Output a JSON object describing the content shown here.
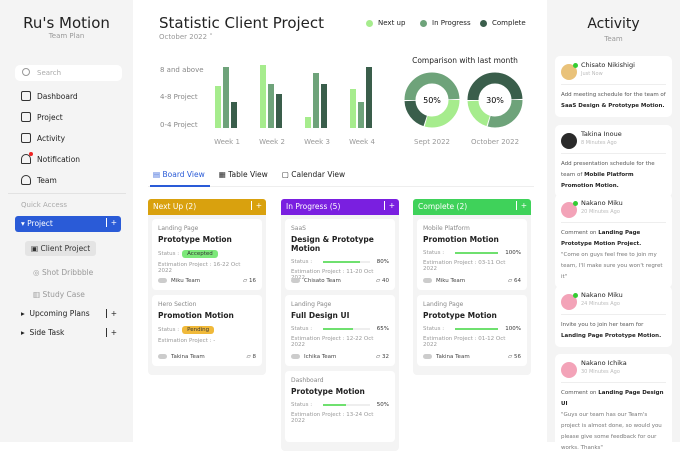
{
  "sidebar": {
    "brand": "Ru's Motion",
    "subtitle": "Team Plan",
    "search_placeholder": "Search",
    "nav": [
      "Dashboard",
      "Project",
      "Activity",
      "Notification",
      "Team"
    ],
    "quick_access": "Quick Access",
    "project": "Project",
    "project_items": [
      "Client Project",
      "Shot Dribbble",
      "Study Case"
    ],
    "groups": [
      "Upcoming Plans",
      "Side Task"
    ]
  },
  "header": {
    "title": "Statistic Client Project",
    "month": "October 2022",
    "legend": [
      "Next up",
      "In Progress",
      "Complete"
    ]
  },
  "colors": {
    "next_up": "#a6ec8d",
    "in_progress": "#6ea37a",
    "complete": "#3a5e4b",
    "accent": "#2a5bd7"
  },
  "chart_data": [
    {
      "type": "bar",
      "categories": [
        "Week 1",
        "Week 2",
        "Week 3",
        "Week 4"
      ],
      "y_tick_labels": [
        "0-4 Project",
        "4-8 Project",
        "8 and above"
      ],
      "series": [
        {
          "name": "Next up",
          "values": [
            7.9,
            11.8,
            2.1,
            7.3
          ]
        },
        {
          "name": "In Progress",
          "values": [
            11.4,
            8.3,
            10.3,
            4.9
          ]
        },
        {
          "name": "Complete",
          "values": [
            4.9,
            6.4,
            8.3,
            11.4
          ]
        }
      ],
      "ylim": [
        0,
        12
      ]
    },
    {
      "type": "pie",
      "title": "Comparison with last month",
      "donuts": [
        {
          "label": "Sept 2022",
          "center": "50%",
          "slices": {
            "Next up": 30,
            "In Progress": 50,
            "Complete": 20
          }
        },
        {
          "label": "October 2022",
          "center": "30%",
          "slices": {
            "Next up": 20,
            "In Progress": 30,
            "Complete": 50
          }
        }
      ]
    }
  ],
  "tabs": [
    "Board View",
    "Table View",
    "Calendar View"
  ],
  "columns": [
    {
      "title": "Next Up (2)",
      "color": "#d9a10e",
      "cards": [
        {
          "category": "Landing Page",
          "title": "Prototype Motion",
          "status": "Accepted",
          "status_color": "#7de87a",
          "estimation": "Estimation Project : 16-22 Oct 2022",
          "team": "Miku Team",
          "comments": "16"
        },
        {
          "category": "Hero Section",
          "title": "Promotion Motion",
          "status": "Pending",
          "status_color": "#f0b93a",
          "estimation": "Estimation Project : -",
          "team": "Takina Team",
          "comments": "8"
        }
      ]
    },
    {
      "title": "In Progress (5)",
      "color": "#7a1fe0",
      "cards": [
        {
          "category": "SaaS",
          "title": "Design & Prototype Motion",
          "progress": 80,
          "progress_label": "80%",
          "estimation": "Estimation Project : 11-20 Oct 2022",
          "team": "Chisato Team",
          "comments": "40"
        },
        {
          "category": "Landing Page",
          "title": "Full Design UI",
          "progress": 65,
          "progress_label": "65%",
          "estimation": "Estimation Project : 12-22 Oct 2022",
          "team": "Ichika Team",
          "comments": "32"
        },
        {
          "category": "Dashboard",
          "title": "Prototype Motion",
          "progress": 50,
          "progress_label": "50%",
          "estimation": "Estimation Project : 13-24 Oct 2022"
        }
      ]
    },
    {
      "title": "Complete (2)",
      "color": "#3fd25a",
      "cards": [
        {
          "category": "Mobile Platform",
          "title": "Promotion Motion",
          "progress": 100,
          "progress_label": "100%",
          "estimation": "Estimation Project : 03-11 Oct 2022",
          "team": "Miku Team",
          "comments": "64"
        },
        {
          "category": "Landing Page",
          "title": "Prototype Motion",
          "progress": 100,
          "progress_label": "100%",
          "estimation": "Estimation Project : 01-12 Oct 2022",
          "team": "Takina Team",
          "comments": "56"
        }
      ]
    }
  ],
  "status_label": "Status :",
  "activity": {
    "title": "Activity",
    "subtitle": "Team",
    "items": [
      {
        "name": "Chisato Nikishigi",
        "time": "Just Now",
        "text": "Add meeting schedule for the team of",
        "bold": "SaaS Design & Prototype Motion.",
        "online": true,
        "avatar": "#e9c27a"
      },
      {
        "name": "Takina Inoue",
        "time": "8 Minutes Ago",
        "text": "Add presentation schedule for the team of",
        "bold": "Mobile Platform Promotion Motion.",
        "online": false,
        "avatar": "#2a2a2a"
      },
      {
        "name": "Nakano Miku",
        "time": "20 Minutes Ago",
        "text": "Comment on",
        "bold": "Landing Page Prototype Motion Project.",
        "quote": "\"Come on guys feel free to join my team, I'll make sure you won't regret it\"",
        "online": true,
        "avatar": "#f3a3b8"
      },
      {
        "name": "Nakano Miku",
        "time": "24 Minutes Ago",
        "text": "Invite you to join her team for",
        "bold": "Landing Page Prototype Motion.",
        "online": true,
        "avatar": "#f3a3b8"
      },
      {
        "name": "Nakano Ichika",
        "time": "30 Minutes Ago",
        "text": "Comment on",
        "bold": "Landing Page Design UI",
        "quote": "\"Guys our team has our Team's project is almost done, so would you please give some feedback for our works. Thanks\"",
        "online": false,
        "avatar": "#f3a3b8"
      }
    ]
  }
}
